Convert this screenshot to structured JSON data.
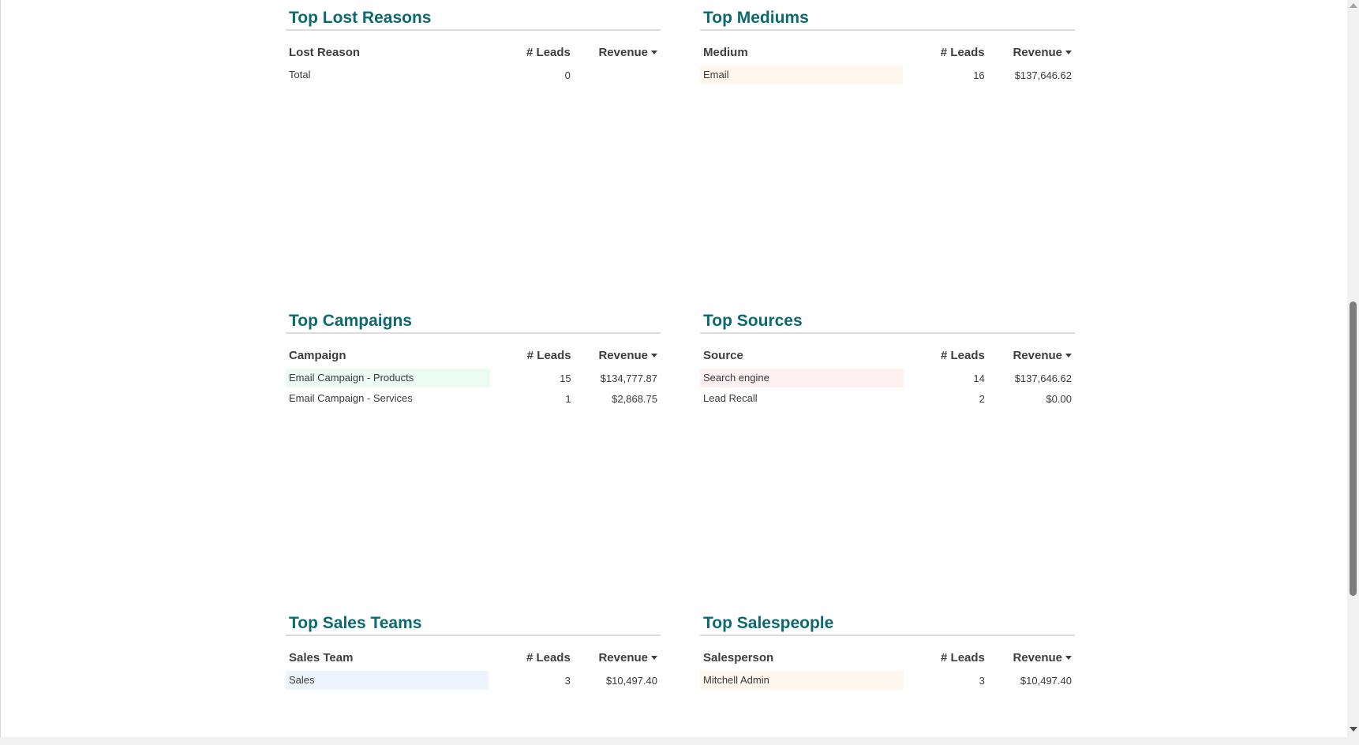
{
  "panels": {
    "lost_reasons": {
      "title": "Top Lost Reasons",
      "headers": {
        "name": "Lost Reason",
        "leads": "# Leads",
        "revenue": "Revenue"
      },
      "rows": [
        {
          "name": "Total",
          "leads": "0",
          "revenue": "",
          "highlight": ""
        }
      ]
    },
    "mediums": {
      "title": "Top Mediums",
      "headers": {
        "name": "Medium",
        "leads": "# Leads",
        "revenue": "Revenue"
      },
      "rows": [
        {
          "name": "Email",
          "leads": "16",
          "revenue": "$137,646.62",
          "highlight": "#fff6ee"
        }
      ]
    },
    "campaigns": {
      "title": "Top Campaigns",
      "headers": {
        "name": "Campaign",
        "leads": "# Leads",
        "revenue": "Revenue"
      },
      "rows": [
        {
          "name": "Email Campaign - Products",
          "leads": "15",
          "revenue": "$134,777.87",
          "highlight": "#ecfbf3"
        },
        {
          "name": "Email Campaign - Services",
          "leads": "1",
          "revenue": "$2,868.75",
          "highlight": ""
        }
      ]
    },
    "sources": {
      "title": "Top Sources",
      "headers": {
        "name": "Source",
        "leads": "# Leads",
        "revenue": "Revenue"
      },
      "rows": [
        {
          "name": "Search engine",
          "leads": "14",
          "revenue": "$137,646.62",
          "highlight": "#fff0f1"
        },
        {
          "name": "Lead Recall",
          "leads": "2",
          "revenue": "$0.00",
          "highlight": ""
        }
      ]
    },
    "sales_teams": {
      "title": "Top Sales Teams",
      "headers": {
        "name": "Sales Team",
        "leads": "# Leads",
        "revenue": "Revenue"
      },
      "rows": [
        {
          "name": "Sales",
          "leads": "3",
          "revenue": "$10,497.40",
          "highlight": "#eef4fd"
        }
      ]
    },
    "salespeople": {
      "title": "Top Salespeople",
      "headers": {
        "name": "Salesperson",
        "leads": "# Leads",
        "revenue": "Revenue"
      },
      "rows": [
        {
          "name": "Mitchell Admin",
          "leads": "3",
          "revenue": "$10,497.40",
          "highlight": "#fff6ee"
        }
      ]
    }
  }
}
